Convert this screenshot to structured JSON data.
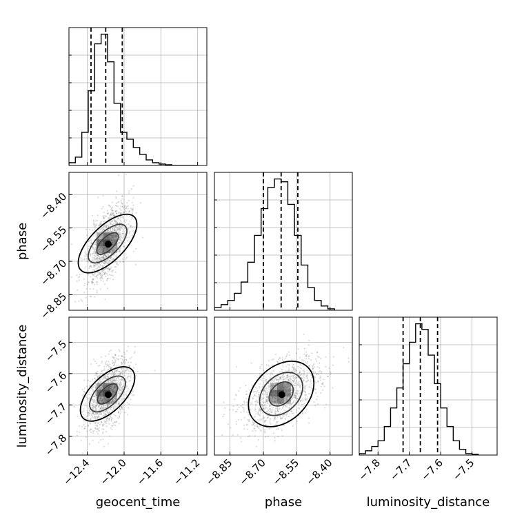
{
  "chart_data": {
    "type": "corner",
    "parameters": [
      "geocent_time",
      "phase",
      "luminosity_distance"
    ],
    "ranges": {
      "geocent_time": [
        -12.6,
        -11.1
      ],
      "phase": [
        -8.92,
        -8.3
      ],
      "luminosity_distance": [
        -7.86,
        -7.42
      ]
    },
    "ticks": {
      "geocent_time": [
        -12.4,
        -12.0,
        -11.6,
        -11.2
      ],
      "phase": [
        -8.85,
        -8.7,
        -8.55,
        -8.4
      ],
      "luminosity_distance": [
        -7.8,
        -7.7,
        -7.6,
        -7.5
      ]
    },
    "tick_labels": {
      "geocent_time": [
        "−12.4",
        "−12.0",
        "−11.6",
        "−11.2"
      ],
      "phase": [
        "−8.85",
        "−8.70",
        "−8.55",
        "−8.40"
      ],
      "luminosity_distance": [
        "−7.8",
        "−7.7",
        "−7.6",
        "−7.5"
      ]
    },
    "quantiles": {
      "geocent_time": [
        -12.36,
        -12.2,
        -12.02
      ],
      "phase": [
        -8.7,
        -8.62,
        -8.545
      ],
      "luminosity_distance": [
        -7.72,
        -7.665,
        -7.61
      ]
    },
    "histograms": {
      "geocent_time": {
        "edges": [
          -12.6,
          -12.53,
          -12.46,
          -12.39,
          -12.32,
          -12.25,
          -12.18,
          -12.11,
          -12.04,
          -11.97,
          -11.9,
          -11.83,
          -11.76,
          -11.69,
          -11.62,
          -11.55,
          -11.48,
          -11.41,
          -11.34,
          -11.27,
          -11.2
        ],
        "counts": [
          2,
          6,
          24,
          54,
          88,
          95,
          75,
          45,
          24,
          19,
          13,
          8,
          4,
          2,
          1,
          0.5,
          0,
          0,
          0,
          0
        ]
      },
      "phase": {
        "edges": [
          -8.92,
          -8.89,
          -8.86,
          -8.83,
          -8.8,
          -8.77,
          -8.74,
          -8.71,
          -8.68,
          -8.65,
          -8.62,
          -8.59,
          -8.56,
          -8.53,
          -8.5,
          -8.47,
          -8.44,
          -8.41,
          -8.38
        ],
        "counts": [
          2,
          4,
          7,
          12,
          20,
          34,
          53,
          72,
          87,
          93,
          91,
          75,
          53,
          32,
          16,
          7,
          3,
          1
        ]
      },
      "luminosity_distance": {
        "edges": [
          -7.86,
          -7.84,
          -7.82,
          -7.8,
          -7.78,
          -7.76,
          -7.74,
          -7.72,
          -7.7,
          -7.68,
          -7.66,
          -7.64,
          -7.62,
          -7.6,
          -7.58,
          -7.56,
          -7.54,
          -7.52,
          -7.5,
          -7.48
        ],
        "counts": [
          1,
          3,
          6,
          10,
          20,
          33,
          47,
          64,
          79,
          92,
          88,
          70,
          50,
          33,
          20,
          10,
          4,
          1,
          0.5
        ]
      }
    },
    "correlations": {
      "phase|geocent_time": {
        "center": [
          -12.18,
          -8.62
        ],
        "sd": [
          0.12,
          0.085
        ],
        "rho": 0.55
      },
      "luminosity_distance|geocent_time": {
        "center": [
          -12.18,
          -7.665
        ],
        "sd": [
          0.12,
          0.055
        ],
        "rho": 0.5
      },
      "luminosity_distance|phase": {
        "center": [
          -8.62,
          -7.665
        ],
        "sd": [
          0.085,
          0.055
        ],
        "rho": 0.5
      }
    },
    "grid": true
  }
}
